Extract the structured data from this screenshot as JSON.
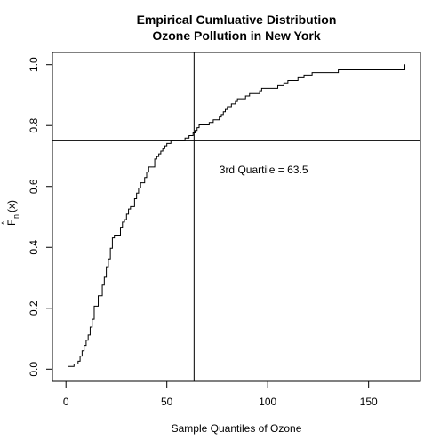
{
  "chart_data": {
    "type": "line",
    "title_line1": "Empirical Cumluative Distribution",
    "title_line2": "Ozone Pollution in New York",
    "xlabel": "Sample Quantiles of Ozone",
    "ylabel_main": "F",
    "ylabel_hat": "^",
    "ylabel_sub": "n",
    "ylabel_arg": "(x)",
    "xlim": [
      -6.7,
      175.7
    ],
    "ylim": [
      -0.04,
      1.04
    ],
    "x_ticks": [
      0,
      50,
      100,
      150
    ],
    "x_tick_labels": [
      "0",
      "50",
      "100",
      "150"
    ],
    "y_ticks": [
      0.0,
      0.2,
      0.4,
      0.6,
      0.8,
      1.0
    ],
    "y_tick_labels": [
      "0.0",
      "0.2",
      "0.4",
      "0.6",
      "0.8",
      "1.0"
    ],
    "ecdf_points": [
      [
        1,
        0.009
      ],
      [
        4,
        0.017
      ],
      [
        6,
        0.026
      ],
      [
        7,
        0.043
      ],
      [
        8,
        0.06
      ],
      [
        9,
        0.078
      ],
      [
        10,
        0.095
      ],
      [
        11,
        0.112
      ],
      [
        12,
        0.138
      ],
      [
        13,
        0.164
      ],
      [
        14,
        0.207
      ],
      [
        16,
        0.241
      ],
      [
        18,
        0.276
      ],
      [
        19,
        0.302
      ],
      [
        20,
        0.336
      ],
      [
        21,
        0.362
      ],
      [
        22,
        0.397
      ],
      [
        23,
        0.431
      ],
      [
        24,
        0.44
      ],
      [
        27,
        0.466
      ],
      [
        28,
        0.483
      ],
      [
        29,
        0.491
      ],
      [
        30,
        0.509
      ],
      [
        31,
        0.526
      ],
      [
        32,
        0.534
      ],
      [
        34,
        0.56
      ],
      [
        35,
        0.578
      ],
      [
        36,
        0.595
      ],
      [
        37,
        0.612
      ],
      [
        39,
        0.629
      ],
      [
        40,
        0.647
      ],
      [
        41,
        0.664
      ],
      [
        44,
        0.69
      ],
      [
        45,
        0.698
      ],
      [
        46,
        0.707
      ],
      [
        47,
        0.716
      ],
      [
        48,
        0.724
      ],
      [
        49,
        0.733
      ],
      [
        50,
        0.741
      ],
      [
        52,
        0.75
      ],
      [
        59,
        0.759
      ],
      [
        61,
        0.767
      ],
      [
        63,
        0.776
      ],
      [
        64,
        0.784
      ],
      [
        65,
        0.793
      ],
      [
        66,
        0.802
      ],
      [
        71,
        0.81
      ],
      [
        73,
        0.819
      ],
      [
        76,
        0.828
      ],
      [
        77,
        0.836
      ],
      [
        78,
        0.845
      ],
      [
        79,
        0.853
      ],
      [
        80,
        0.862
      ],
      [
        82,
        0.871
      ],
      [
        84,
        0.879
      ],
      [
        85,
        0.888
      ],
      [
        89,
        0.897
      ],
      [
        91,
        0.905
      ],
      [
        96,
        0.914
      ],
      [
        97,
        0.922
      ],
      [
        105,
        0.931
      ],
      [
        108,
        0.94
      ],
      [
        110,
        0.948
      ],
      [
        115,
        0.957
      ],
      [
        118,
        0.966
      ],
      [
        122,
        0.974
      ],
      [
        135,
        0.983
      ],
      [
        168,
        1.0
      ]
    ],
    "vline_x": 63.5,
    "hline_y": 0.75,
    "annotation": {
      "text": "3rd Quartile = 63.5",
      "x": 98,
      "y": 0.655
    }
  }
}
